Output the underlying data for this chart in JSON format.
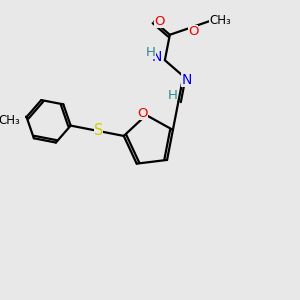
{
  "bg_color": "#e8e8e8",
  "atom_colors": {
    "C": "#000000",
    "H": "#2e8b8b",
    "N": "#0000ee",
    "O": "#ee0000",
    "S": "#cccc00"
  },
  "bond_color": "#000000",
  "bond_width": 1.6,
  "title": "",
  "figsize": [
    3.0,
    3.0
  ],
  "dpi": 100
}
